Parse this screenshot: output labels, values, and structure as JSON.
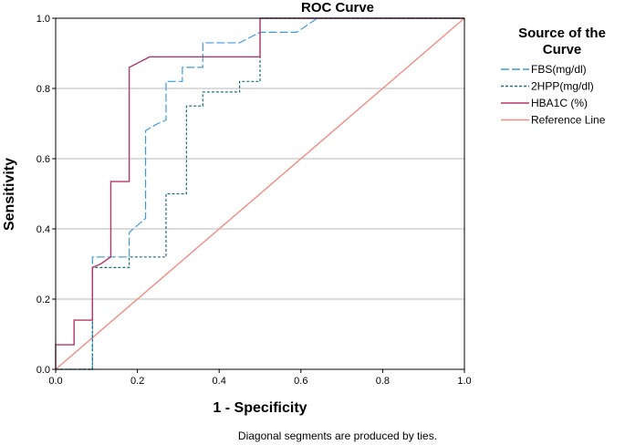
{
  "chart_data": {
    "type": "line",
    "title": "ROC Curve",
    "xlabel": "1 - Specificity",
    "ylabel": "Sensitivity",
    "xlim": [
      0,
      1
    ],
    "ylim": [
      0,
      1
    ],
    "x_ticks": [
      "0.0",
      "0.2",
      "0.4",
      "0.6",
      "0.8",
      "1.0"
    ],
    "y_ticks": [
      "0.0",
      "0.2",
      "0.4",
      "0.6",
      "0.8",
      "1.0"
    ],
    "grid": "horizontal",
    "legend_title_lines": [
      "Source of the",
      "Curve"
    ],
    "legend_position": "right",
    "footnote": "Diagonal segments are produced by ties.",
    "series": [
      {
        "name": "FBS(mg/dl)",
        "color": "#3d9ae0",
        "dash": "long-dash",
        "points": [
          [
            0,
            0
          ],
          [
            0.09,
            0
          ],
          [
            0.09,
            0.32
          ],
          [
            0.18,
            0.32
          ],
          [
            0.18,
            0.39
          ],
          [
            0.2,
            0.41
          ],
          [
            0.22,
            0.43
          ],
          [
            0.22,
            0.68
          ],
          [
            0.25,
            0.7
          ],
          [
            0.27,
            0.71
          ],
          [
            0.27,
            0.82
          ],
          [
            0.31,
            0.82
          ],
          [
            0.31,
            0.86
          ],
          [
            0.36,
            0.86
          ],
          [
            0.36,
            0.93
          ],
          [
            0.45,
            0.93
          ],
          [
            0.5,
            0.96
          ],
          [
            0.59,
            0.96
          ],
          [
            0.64,
            1.0
          ],
          [
            1.0,
            1.0
          ]
        ]
      },
      {
        "name": "2HPP(mg/dl)",
        "color": "#1f6f78",
        "dash": "short-dash",
        "points": [
          [
            0,
            0
          ],
          [
            0.09,
            0
          ],
          [
            0.09,
            0.29
          ],
          [
            0.18,
            0.29
          ],
          [
            0.18,
            0.32
          ],
          [
            0.27,
            0.32
          ],
          [
            0.27,
            0.5
          ],
          [
            0.32,
            0.5
          ],
          [
            0.32,
            0.75
          ],
          [
            0.36,
            0.75
          ],
          [
            0.36,
            0.79
          ],
          [
            0.45,
            0.79
          ],
          [
            0.45,
            0.82
          ],
          [
            0.5,
            0.82
          ],
          [
            0.5,
            1.0
          ],
          [
            1.0,
            1.0
          ]
        ]
      },
      {
        "name": "HBA1C (%)",
        "color": "#b5376b",
        "dash": "solid",
        "points": [
          [
            0,
            0
          ],
          [
            0,
            0.07
          ],
          [
            0.045,
            0.07
          ],
          [
            0.045,
            0.14
          ],
          [
            0.09,
            0.14
          ],
          [
            0.09,
            0.29
          ],
          [
            0.11,
            0.3
          ],
          [
            0.135,
            0.32
          ],
          [
            0.135,
            0.535
          ],
          [
            0.18,
            0.535
          ],
          [
            0.18,
            0.86
          ],
          [
            0.23,
            0.89
          ],
          [
            0.5,
            0.89
          ],
          [
            0.5,
            1.0
          ],
          [
            1.0,
            1.0
          ]
        ]
      },
      {
        "name": "Reference Line",
        "color": "#f08c84",
        "dash": "solid",
        "points": [
          [
            0,
            0
          ],
          [
            1,
            1
          ]
        ]
      }
    ]
  }
}
